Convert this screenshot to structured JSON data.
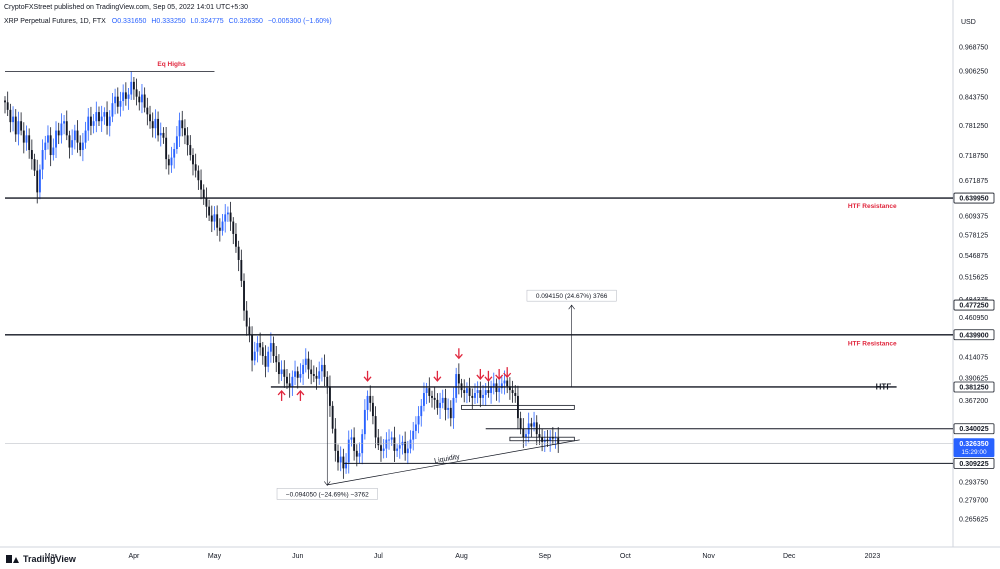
{
  "header": {
    "published": "CryptoFXStreet published on TradingView.com, Sep 05, 2022 14:01 UTC+5:30",
    "symbol_line": "XRP Perpetual Futures, 1D, FTX",
    "o": "O0.331650",
    "h": "H0.333250",
    "l": "L0.324775",
    "c": "C0.326350",
    "chg": "−0.005300 (−1.60%)"
  },
  "footer": {
    "brand": "TradingView"
  },
  "colors": {
    "up": "#2962ff",
    "down": "#131722",
    "annotation": "#e0263d",
    "last_label": "#2962ff"
  },
  "chart_data": {
    "type": "candlestick",
    "currency": "USD",
    "y_scale": "log",
    "ylim": [
      0.252,
      1.02
    ],
    "x_range": [
      "2022-02-12",
      "2023-01-31"
    ],
    "x_ticks": [
      {
        "date": "2022-03-01",
        "label": "Mar"
      },
      {
        "date": "2022-04-01",
        "label": "Apr"
      },
      {
        "date": "2022-05-01",
        "label": "May"
      },
      {
        "date": "2022-06-01",
        "label": "Jun"
      },
      {
        "date": "2022-07-01",
        "label": "Jul"
      },
      {
        "date": "2022-08-01",
        "label": "Aug"
      },
      {
        "date": "2022-09-01",
        "label": "Sep"
      },
      {
        "date": "2022-10-01",
        "label": "Oct"
      },
      {
        "date": "2022-11-01",
        "label": "Nov"
      },
      {
        "date": "2022-12-01",
        "label": "Dec"
      },
      {
        "date": "2023-01-01",
        "label": "2023"
      }
    ],
    "y_ticks": [
      "0.968750",
      "0.906250",
      "0.843750",
      "0.781250",
      "0.718750",
      "0.671875",
      "0.609375",
      "0.578125",
      "0.546875",
      "0.515625",
      "0.484375",
      "0.460950",
      "0.414075",
      "0.390625",
      "0.367200",
      "0.293750",
      "0.279700",
      "0.265625"
    ],
    "price_labels": [
      {
        "value": 0.63995,
        "label": "0.639950",
        "style": "black"
      },
      {
        "value": 0.47725,
        "label": "0.477250",
        "style": "black"
      },
      {
        "value": 0.4399,
        "label": "0.439900",
        "style": "black"
      },
      {
        "value": 0.38125,
        "label": "0.381250",
        "style": "black"
      },
      {
        "value": 0.340025,
        "label": "0.340025",
        "style": "black"
      },
      {
        "value": 0.32635,
        "label": "0.326350",
        "sublabel": "15:29:00",
        "style": "blue"
      },
      {
        "value": 0.309225,
        "label": "0.309225",
        "style": "black"
      }
    ],
    "hlines": [
      {
        "value": 0.905,
        "start": "2022-02-12",
        "end": "2022-05-01",
        "width": 0.8
      },
      {
        "value": 0.63995,
        "start": "2022-02-12",
        "end": "2023-01-31",
        "width": 1.4
      },
      {
        "value": 0.4399,
        "start": "2022-02-12",
        "end": "2023-01-31",
        "width": 1.4
      },
      {
        "value": 0.38125,
        "start": "2022-05-22",
        "end": "2023-01-10",
        "width": 1.4
      },
      {
        "value": 0.340025,
        "start": "2022-08-10",
        "end": "2023-01-31",
        "width": 1.0
      },
      {
        "value": 0.309225,
        "start": "2022-06-18",
        "end": "2023-01-31",
        "width": 1.0
      },
      {
        "value": 0.32635,
        "start": "2022-02-12",
        "end": "2023-01-31",
        "width": 0.5,
        "color": "#b2b5be"
      }
    ],
    "boxes": [
      {
        "d1": "2022-08-01",
        "d2": "2022-09-12",
        "top": 0.3625,
        "bottom": 0.3585
      },
      {
        "d1": "2022-08-19",
        "d2": "2022-09-12",
        "top": 0.3322,
        "bottom": 0.329
      }
    ],
    "trendline": {
      "d1": "2022-06-12",
      "v1": 0.2915,
      "d2": "2022-09-14",
      "v2": 0.3298
    },
    "liquidity_label": {
      "text": "Liquidity",
      "date": "2022-07-22",
      "value": 0.3095
    },
    "range_drop": {
      "date": "2022-06-12",
      "from": 0.3852,
      "to": 0.2911,
      "label": "−0.094050 (−24.69%) −3762"
    },
    "range_rise": {
      "date": "2022-09-11",
      "from": 0.3812,
      "to": 0.4771,
      "label": "0.094150 (24.67%) 3766"
    },
    "annotations": [
      {
        "text": "Eq Highs",
        "date": "2022-04-15",
        "value": 0.925
      },
      {
        "text": "HTF Resistance",
        "date": "2023-01-10",
        "value": 0.627
      },
      {
        "text": "HTF Resistance",
        "date": "2023-01-10",
        "value": 0.43
      },
      {
        "text": "HTF",
        "date": "2023-01-08",
        "value": 0.3812,
        "color": "#131722"
      }
    ],
    "arrows_up": [
      {
        "date": "2022-05-26",
        "value": 0.373
      },
      {
        "date": "2022-06-02",
        "value": 0.373
      }
    ],
    "arrows_down": [
      {
        "date": "2022-06-27",
        "value": 0.392
      },
      {
        "date": "2022-07-23",
        "value": 0.392
      },
      {
        "date": "2022-07-31",
        "value": 0.417
      },
      {
        "date": "2022-08-08",
        "value": 0.394
      },
      {
        "date": "2022-08-11",
        "value": 0.392
      },
      {
        "date": "2022-08-15",
        "value": 0.394
      },
      {
        "date": "2022-08-18",
        "value": 0.396
      }
    ],
    "candles": {
      "start_date": "2022-02-12",
      "last_close": 0.32635,
      "closes": [
        0.832,
        0.815,
        0.788,
        0.8,
        0.762,
        0.79,
        0.77,
        0.745,
        0.76,
        0.73,
        0.712,
        0.69,
        0.65,
        0.692,
        0.73,
        0.745,
        0.76,
        0.72,
        0.735,
        0.77,
        0.76,
        0.785,
        0.79,
        0.76,
        0.735,
        0.75,
        0.77,
        0.745,
        0.73,
        0.745,
        0.77,
        0.8,
        0.78,
        0.79,
        0.81,
        0.79,
        0.8,
        0.81,
        0.78,
        0.8,
        0.83,
        0.845,
        0.822,
        0.835,
        0.855,
        0.84,
        0.85,
        0.88,
        0.862,
        0.845,
        0.832,
        0.85,
        0.82,
        0.805,
        0.79,
        0.775,
        0.795,
        0.76,
        0.765,
        0.755,
        0.712,
        0.7,
        0.715,
        0.732,
        0.758,
        0.792,
        0.775,
        0.76,
        0.74,
        0.72,
        0.702,
        0.69,
        0.672,
        0.655,
        0.64,
        0.625,
        0.61,
        0.6,
        0.612,
        0.59,
        0.585,
        0.6,
        0.612,
        0.615,
        0.6,
        0.58,
        0.56,
        0.54,
        0.51,
        0.47,
        0.45,
        0.44,
        0.41,
        0.42,
        0.43,
        0.425,
        0.415,
        0.403,
        0.42,
        0.43,
        0.415,
        0.408,
        0.395,
        0.4,
        0.392,
        0.385,
        0.381,
        0.392,
        0.398,
        0.391,
        0.395,
        0.405,
        0.412,
        0.4,
        0.395,
        0.393,
        0.39,
        0.398,
        0.405,
        0.392,
        0.382,
        0.362,
        0.34,
        0.32,
        0.31,
        0.315,
        0.305,
        0.31,
        0.33,
        0.332,
        0.32,
        0.315,
        0.318,
        0.335,
        0.358,
        0.372,
        0.365,
        0.352,
        0.332,
        0.325,
        0.32,
        0.322,
        0.33,
        0.33,
        0.332,
        0.32,
        0.322,
        0.325,
        0.328,
        0.318,
        0.322,
        0.33,
        0.338,
        0.344,
        0.352,
        0.362,
        0.375,
        0.38,
        0.372,
        0.37,
        0.368,
        0.36,
        0.365,
        0.37,
        0.358,
        0.36,
        0.35,
        0.37,
        0.395,
        0.385,
        0.378,
        0.375,
        0.38,
        0.372,
        0.37,
        0.375,
        0.378,
        0.37,
        0.373,
        0.378,
        0.375,
        0.382,
        0.385,
        0.376,
        0.38,
        0.385,
        0.388,
        0.382,
        0.378,
        0.375,
        0.372,
        0.35,
        0.34,
        0.332,
        0.335,
        0.345,
        0.342,
        0.346,
        0.335,
        0.332,
        0.328,
        0.33,
        0.329,
        0.332,
        0.331,
        0.33165,
        0.32635
      ]
    }
  }
}
